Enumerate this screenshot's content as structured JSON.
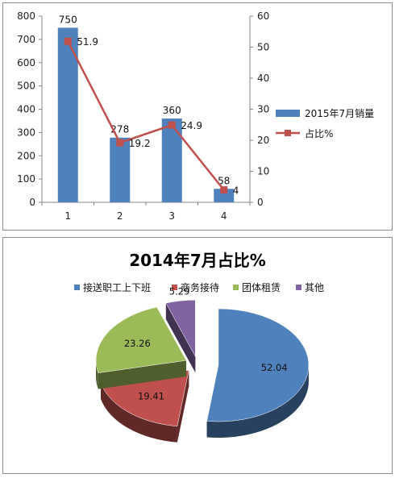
{
  "colors": {
    "bar": "#4f81bd",
    "line": "#c0504d",
    "slice_1": "#4f81bd",
    "slice_2": "#c0504d",
    "slice_3": "#9bbb59",
    "slice_4": "#8064a2"
  },
  "chart_data": [
    {
      "type": "bar",
      "categories": [
        "1",
        "2",
        "3",
        "4"
      ],
      "series": [
        {
          "name": "2015年7月销量",
          "type": "bar",
          "axis": "left",
          "values": [
            750,
            278,
            360,
            58
          ],
          "labels": [
            "750",
            "278",
            "360",
            "58"
          ]
        },
        {
          "name": "占比%",
          "type": "line",
          "axis": "right",
          "values": [
            51.9,
            19.2,
            24.9,
            4
          ],
          "labels": [
            "51.9",
            "19.2",
            "24.9",
            "4"
          ]
        }
      ],
      "ylim": [
        0,
        800
      ],
      "y_ticks": [
        "0",
        "100",
        "200",
        "300",
        "400",
        "500",
        "600",
        "700",
        "800"
      ],
      "y2lim": [
        0,
        60
      ],
      "y2_ticks": [
        "0",
        "10",
        "20",
        "30",
        "40",
        "50",
        "60"
      ],
      "legend": "right",
      "grid": false
    },
    {
      "type": "pie",
      "title": "2014年7月占比%",
      "labels": [
        "接送职工上下班",
        "商务接待",
        "团体租赁",
        "其他"
      ],
      "values": [
        52.04,
        19.41,
        23.26,
        5.29
      ],
      "value_labels": [
        "52.04",
        "19.41",
        "23.26",
        "5.29"
      ],
      "style": "3d-exploded",
      "legend": "top"
    }
  ]
}
